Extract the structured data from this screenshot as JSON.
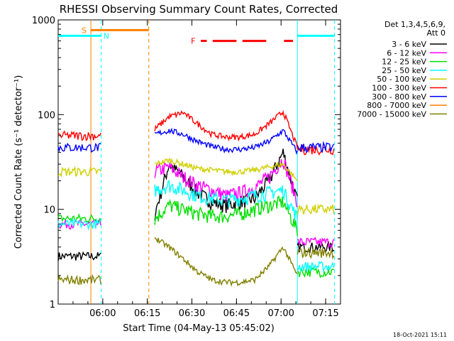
{
  "chart_data": {
    "type": "line",
    "title": "RHESSI Observing Summary Count Rates, Corrected",
    "xlabel": "Start Time (04-May-13 05:45:02)",
    "ylabel": "Corrected Count Rate (s⁻¹ detector⁻¹)",
    "yscale": "log",
    "xlim": [
      0,
      95
    ],
    "ylim": [
      1,
      1000
    ],
    "x_ticks": [
      {
        "t": 15,
        "label": "06:00"
      },
      {
        "t": 30,
        "label": "06:15"
      },
      {
        "t": 45,
        "label": "06:30"
      },
      {
        "t": 60,
        "label": "06:45"
      },
      {
        "t": 75,
        "label": "07:00"
      },
      {
        "t": 90,
        "label": "07:15"
      }
    ],
    "y_ticks": [
      {
        "v": 1,
        "label": "1"
      },
      {
        "v": 10,
        "label": "10"
      },
      {
        "v": 100,
        "label": "100"
      },
      {
        "v": 1000,
        "label": "1000"
      }
    ],
    "legend_header": [
      "Det 1,3,4,5,6,9,",
      "Att 0"
    ],
    "legend_position": "right",
    "segments": [
      [
        0,
        14.5
      ],
      [
        32.5,
        80.5
      ],
      [
        80.5,
        93
      ]
    ],
    "series": [
      {
        "name": "3 - 6 keV",
        "color": "#000000",
        "values": {
          "seg1": 3.2,
          "seg2": [
            9,
            30,
            22,
            15,
            12,
            11,
            12,
            13,
            20,
            40,
            12
          ],
          "seg3": 4.0
        }
      },
      {
        "name": "6 - 12 keV",
        "color": "#ff00ff",
        "values": {
          "seg1": 7,
          "seg2": [
            25,
            28,
            22,
            18,
            16,
            14,
            15,
            17,
            22,
            34,
            12
          ],
          "seg3": 4.5
        }
      },
      {
        "name": "12 - 25 keV",
        "color": "#00e000",
        "values": {
          "seg1": 8,
          "seg2": [
            8,
            11,
            10,
            9,
            8.5,
            8.5,
            9,
            10,
            11,
            12,
            6
          ],
          "seg3": 2.2
        }
      },
      {
        "name": "25 - 50 keV",
        "color": "#00ffff",
        "values": {
          "seg1": 7,
          "seg2": [
            16,
            18,
            16,
            14,
            13,
            12.5,
            13,
            14,
            15,
            16,
            8
          ],
          "seg3": 2.5
        }
      },
      {
        "name": "50 - 100 keV",
        "color": "#d0d000",
        "values": {
          "seg1": 25,
          "seg2": [
            30,
            33,
            30,
            27,
            26,
            25,
            25,
            26,
            28,
            30,
            20
          ],
          "seg3": 10
        }
      },
      {
        "name": "100 - 300 keV",
        "color": "#ff0000",
        "values": {
          "seg1": 60,
          "seg2": [
            70,
            95,
            105,
            80,
            62,
            58,
            58,
            62,
            80,
            108,
            45
          ],
          "seg3": 43
        }
      },
      {
        "name": "300 - 800 keV",
        "color": "#0000ff",
        "values": {
          "seg1": 45,
          "seg2": [
            62,
            68,
            62,
            52,
            46,
            43,
            43,
            45,
            52,
            68,
            40
          ],
          "seg3": 45
        }
      },
      {
        "name": "800 - 7000 keV",
        "color": "#ff8000",
        "values": {
          "seg1": 1,
          "seg2": [
            1,
            1,
            1,
            1,
            1,
            1,
            1,
            1,
            1,
            1,
            1
          ],
          "seg3": 1
        }
      },
      {
        "name": "7000 - 15000 keV",
        "color": "#808000",
        "values": {
          "seg1": 1.8,
          "seg2": [
            5,
            4,
            3,
            2.2,
            1.8,
            1.7,
            1.7,
            1.8,
            2.5,
            4,
            2
          ],
          "seg3": 3.5
        }
      }
    ],
    "flags": [
      {
        "label": "S",
        "color": "#ff8000",
        "level": 780,
        "spans": [
          [
            11,
            30.5
          ]
        ]
      },
      {
        "label": "N",
        "color": "#00ffff",
        "level": 680,
        "spans": [
          [
            0,
            14.5
          ],
          [
            80.5,
            93
          ]
        ]
      },
      {
        "label": "F",
        "color": "#ff0000",
        "level": 600,
        "spans": [
          [
            48,
            50
          ],
          [
            52,
            60
          ],
          [
            62,
            70
          ],
          [
            76,
            79
          ]
        ]
      }
    ],
    "vertical_markers": [
      {
        "t": 11,
        "color": "#ff8000",
        "style": "solid"
      },
      {
        "t": 14.5,
        "color": "#00ffff",
        "style": "dashed"
      },
      {
        "t": 30.5,
        "color": "#ff8000",
        "style": "dashed"
      },
      {
        "t": 80.5,
        "color": "#00ffff",
        "style": "solid"
      },
      {
        "t": 93,
        "color": "#00ffff",
        "style": "dashed"
      }
    ],
    "footer_date": "18-Oct-2021 15:11"
  }
}
